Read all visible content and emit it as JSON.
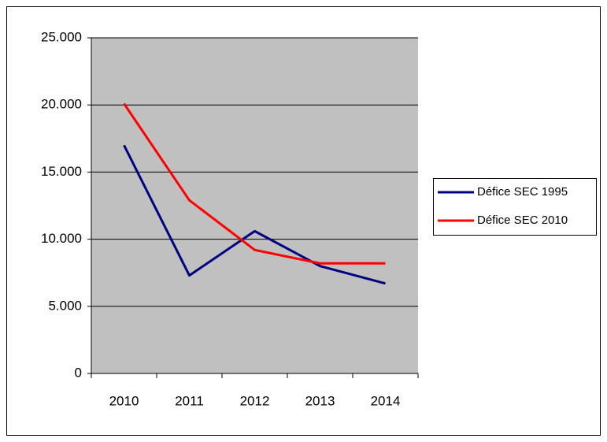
{
  "chart_data": {
    "type": "line",
    "categories": [
      "2010",
      "2011",
      "2012",
      "2013",
      "2014"
    ],
    "series": [
      {
        "name": "Défice SEC 1995",
        "color": "#000080",
        "values": [
          17000,
          7300,
          10600,
          8000,
          6700
        ]
      },
      {
        "name": "Défice SEC 2010",
        "color": "#ff0000",
        "values": [
          20100,
          12900,
          9200,
          8200,
          8200
        ]
      }
    ],
    "ylim": [
      0,
      25000
    ],
    "yticks": [
      0,
      {
        "value": 5000,
        "label": "5.000"
      },
      {
        "value": 10000,
        "label": "10.000"
      },
      {
        "value": 15000,
        "label": "15.000"
      },
      {
        "value": 20000,
        "label": "20.000"
      },
      {
        "value": 25000,
        "label": "25.000"
      }
    ],
    "grid": true,
    "legend": "right"
  }
}
